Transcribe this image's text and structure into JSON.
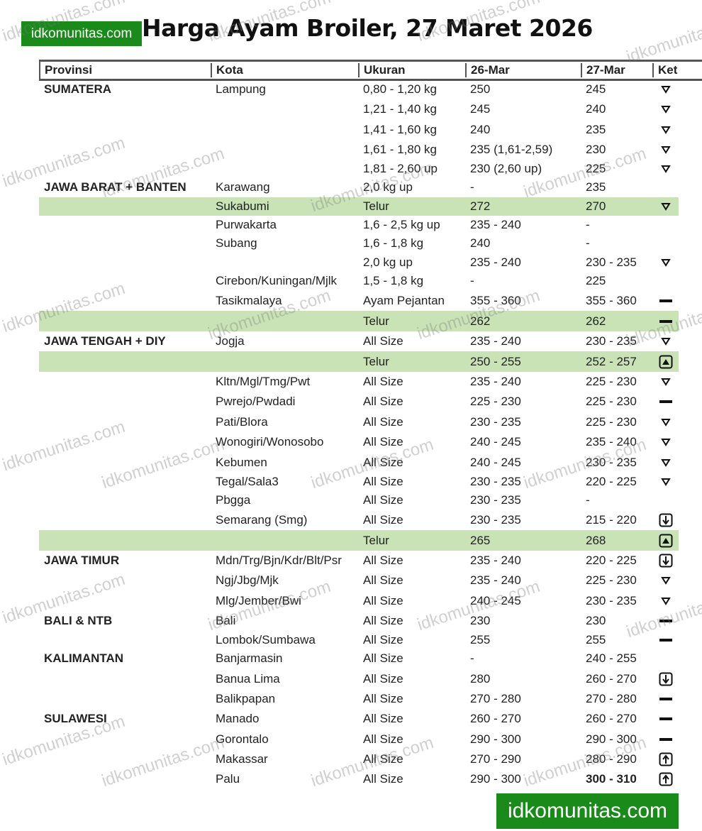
{
  "logo": "idkomunitas.com",
  "title": "Harga Ayam Broiler, 27 Maret 2026",
  "watermark": "idkomunitas.com",
  "banner": "idkomunitas.com",
  "colors": {
    "brand_green": "#1a8a1a",
    "highlight_row": "#c9e3b7"
  },
  "headers": [
    "Provinsi",
    "Kota",
    "Ukuran",
    "26-Mar",
    "27-Mar",
    "Ket"
  ],
  "rows": [
    {
      "prov": "SUMATERA",
      "kota": "Lampung",
      "ukuran": "0,80 - 1,20 kg",
      "d26": "250",
      "d27": "245",
      "ket": "down-triangle"
    },
    {
      "prov": "",
      "kota": "",
      "ukuran": "1,21 - 1,40 kg",
      "d26": "245",
      "d27": "240",
      "ket": "down-triangle"
    },
    {
      "prov": "",
      "kota": "",
      "ukuran": "1,41 - 1,60 kg",
      "d26": "240",
      "d27": "235",
      "ket": "down-triangle"
    },
    {
      "prov": "",
      "kota": "",
      "ukuran": "1,61 - 1,80 kg",
      "d26": "235 (1,61-2,59)",
      "d27": "230",
      "ket": "down-triangle"
    },
    {
      "prov": "",
      "kota": "",
      "ukuran": "1,81 - 2,60 up",
      "d26": "230 (2,60 up)",
      "d27": "225",
      "ket": "down-triangle"
    },
    {
      "prov": "JAWA BARAT + BANTEN",
      "kota": "Karawang",
      "ukuran": "2,0 kg up",
      "d26": "-",
      "d27": "235",
      "ket": ""
    },
    {
      "prov": "",
      "kota": "Sukabumi",
      "ukuran": "Telur",
      "d26": "272",
      "d27": "270",
      "ket": "down-triangle",
      "green": true
    },
    {
      "prov": "",
      "kota": "Purwakarta",
      "ukuran": "1,6 - 2,5 kg up",
      "d26": "235 - 240",
      "d27": "-",
      "ket": ""
    },
    {
      "prov": "",
      "kota": "Subang",
      "ukuran": "1,6 - 1,8 kg",
      "d26": "240",
      "d27": "-",
      "ket": ""
    },
    {
      "prov": "",
      "kota": "",
      "ukuran": "2,0 kg up",
      "d26": "235 - 240",
      "d27": "230 - 235",
      "ket": "down-triangle"
    },
    {
      "prov": "",
      "kota": "Cirebon/Kuningan/Mjlk",
      "ukuran": "1,5 - 1,8 kg",
      "d26": "-",
      "d27": "225",
      "ket": ""
    },
    {
      "prov": "",
      "kota": "Tasikmalaya",
      "ukuran": "Ayam Pejantan",
      "d26": "355 - 360",
      "d27": "355 - 360",
      "ket": "dash"
    },
    {
      "prov": "",
      "kota": "",
      "ukuran": "Telur",
      "d26": "262",
      "d27": "262",
      "ket": "dash",
      "green": true
    },
    {
      "prov": "JAWA TENGAH + DIY",
      "kota": "Jogja",
      "ukuran": "All Size",
      "d26": "235 - 240",
      "d27": "230 - 235",
      "ket": "down-triangle"
    },
    {
      "prov": "",
      "kota": "",
      "ukuran": "Telur",
      "d26": "250 - 255",
      "d27": "252 - 257",
      "ket": "up-box",
      "green": true
    },
    {
      "prov": "",
      "kota": "Kltn/Mgl/Tmg/Pwt",
      "ukuran": "All Size",
      "d26": "235 - 240",
      "d27": "225 - 230",
      "ket": "down-triangle"
    },
    {
      "prov": "",
      "kota": "Pwrejo/Pwdadi",
      "ukuran": "All Size",
      "d26": "225 - 230",
      "d27": "225 - 230",
      "ket": "dash"
    },
    {
      "prov": "",
      "kota": "Pati/Blora",
      "ukuran": "All Size",
      "d26": "230 - 235",
      "d27": "225 - 230",
      "ket": "down-triangle"
    },
    {
      "prov": "",
      "kota": "Wonogiri/Wonosobo",
      "ukuran": "All Size",
      "d26": "240 - 245",
      "d27": "235 - 240",
      "ket": "down-triangle"
    },
    {
      "prov": "",
      "kota": "Kebumen",
      "ukuran": "All Size",
      "d26": "240 - 245",
      "d27": "230 - 235",
      "ket": "down-triangle"
    },
    {
      "prov": "",
      "kota": "Tegal/Sala3",
      "ukuran": "All Size",
      "d26": "230 - 235",
      "d27": "220 - 225",
      "ket": "down-triangle"
    },
    {
      "prov": "",
      "kota": "Pbgga",
      "ukuran": "All Size",
      "d26": "230 - 235",
      "d27": "-",
      "ket": ""
    },
    {
      "prov": "",
      "kota": "Semarang (Smg)",
      "ukuran": "All Size",
      "d26": "230 - 235",
      "d27": "215 - 220",
      "ket": "down-arrow-box"
    },
    {
      "prov": "",
      "kota": "",
      "ukuran": "Telur",
      "d26": "265",
      "d27": "268",
      "ket": "up-box",
      "green": true
    },
    {
      "prov": "JAWA TIMUR",
      "kota": "Mdn/Trg/Bjn/Kdr/Blt/Psr",
      "ukuran": "All Size",
      "d26": "235 - 240",
      "d27": "220 - 225",
      "ket": "down-arrow-box"
    },
    {
      "prov": "",
      "kota": "Ngj/Jbg/Mjk",
      "ukuran": "All Size",
      "d26": "235 - 240",
      "d27": "225 - 230",
      "ket": "down-triangle"
    },
    {
      "prov": "",
      "kota": "Mlg/Jember/Bwi",
      "ukuran": "All Size",
      "d26": "240 - 245",
      "d27": "230 - 235",
      "ket": "down-triangle"
    },
    {
      "prov": "BALI & NTB",
      "kota": "Bali",
      "ukuran": "All Size",
      "d26": "230",
      "d27": "230",
      "ket": "dash"
    },
    {
      "prov": "",
      "kota": "Lombok/Sumbawa",
      "ukuran": "All Size",
      "d26": "255",
      "d27": "255",
      "ket": "dash"
    },
    {
      "prov": "KALIMANTAN",
      "kota": "Banjarmasin",
      "ukuran": "All Size",
      "d26": "-",
      "d27": "240 - 255",
      "ket": ""
    },
    {
      "prov": "",
      "kota": "Banua Lima",
      "ukuran": "All Size",
      "d26": "280",
      "d27": "260 - 270",
      "ket": "down-arrow-box"
    },
    {
      "prov": "",
      "kota": "Balikpapan",
      "ukuran": "All Size",
      "d26": "270 - 280",
      "d27": "270 - 280",
      "ket": "dash"
    },
    {
      "prov": "SULAWESI",
      "kota": "Manado",
      "ukuran": "All Size",
      "d26": "260 - 270",
      "d27": "260 - 270",
      "ket": "dash"
    },
    {
      "prov": "",
      "kota": "Gorontalo",
      "ukuran": "All Size",
      "d26": "290 - 300",
      "d27": "290 - 300",
      "ket": "dash"
    },
    {
      "prov": "",
      "kota": "Makassar",
      "ukuran": "All Size",
      "d26": "270 - 290",
      "d27": "280 - 290",
      "ket": "up-arrow-box"
    },
    {
      "prov": "",
      "kota": "Palu",
      "ukuran": "All Size",
      "d26": "290 - 300",
      "d27": "300 - 310",
      "ket": "up-arrow-box",
      "bold27": true
    }
  ]
}
